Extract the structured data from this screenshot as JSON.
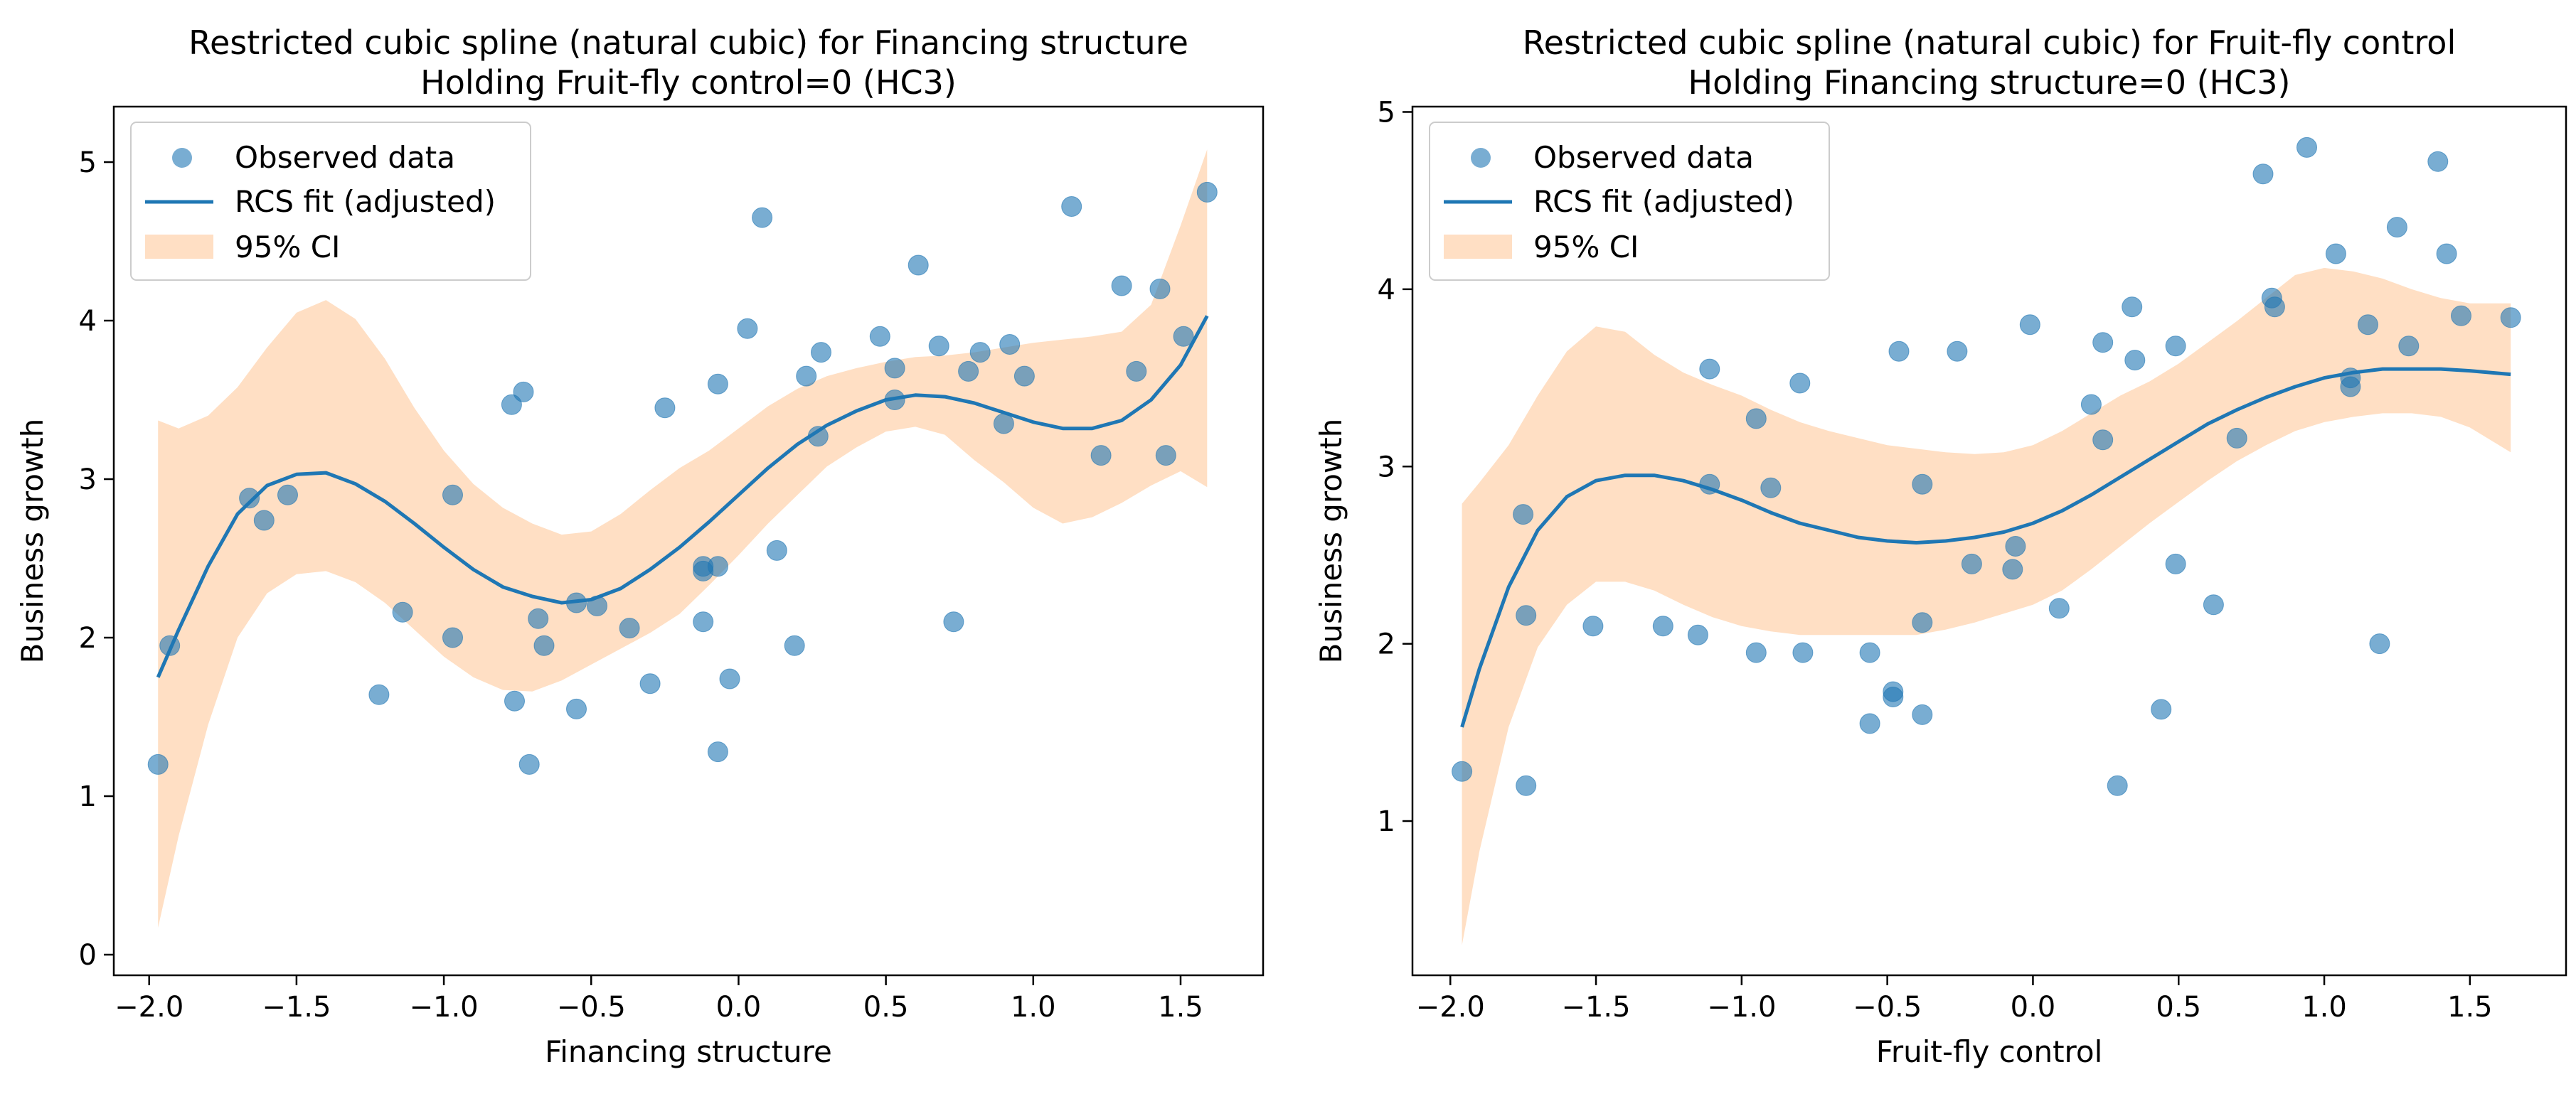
{
  "chart_data": [
    {
      "type": "scatter",
      "title": "Restricted cubic spline (natural cubic) for Financing structure",
      "subtitle": "Holding Fruit-fly control=0 (HC3)",
      "xlabel": "Financing structure",
      "ylabel": "Business growth",
      "xlim": [
        -2.12,
        1.78
      ],
      "ylim": [
        -0.13,
        5.35
      ],
      "xticks": [
        -2.0,
        -1.5,
        -1.0,
        -0.5,
        0.0,
        0.5,
        1.0,
        1.5
      ],
      "xtick_labels": [
        "−2.0",
        "−1.5",
        "−1.0",
        "−0.5",
        "0.0",
        "0.5",
        "1.0",
        "1.5"
      ],
      "yticks": [
        0,
        1,
        2,
        3,
        4,
        5
      ],
      "ytick_labels": [
        "0",
        "1",
        "2",
        "3",
        "4",
        "5"
      ],
      "legend": [
        "Observed data",
        "RCS fit (adjusted)",
        "95% CI"
      ],
      "legend_loc": "upper left",
      "colors": {
        "points": "#1f77b4",
        "line": "#1f77b4",
        "band": "#ffdfc4"
      },
      "points": [
        [
          -1.97,
          1.2
        ],
        [
          -1.93,
          1.95
        ],
        [
          -1.66,
          2.88
        ],
        [
          -1.61,
          2.74
        ],
        [
          -1.53,
          2.9
        ],
        [
          -1.22,
          1.64
        ],
        [
          -1.14,
          2.16
        ],
        [
          -0.97,
          2.9
        ],
        [
          -0.97,
          2.0
        ],
        [
          -0.77,
          3.47
        ],
        [
          -0.76,
          1.6
        ],
        [
          -0.73,
          3.55
        ],
        [
          -0.71,
          1.2
        ],
        [
          -0.68,
          2.12
        ],
        [
          -0.66,
          1.95
        ],
        [
          -0.55,
          2.22
        ],
        [
          -0.55,
          1.55
        ],
        [
          -0.48,
          2.2
        ],
        [
          -0.37,
          2.06
        ],
        [
          -0.3,
          1.71
        ],
        [
          -0.25,
          3.45
        ],
        [
          -0.12,
          2.45
        ],
        [
          -0.12,
          2.42
        ],
        [
          -0.12,
          2.1
        ],
        [
          -0.07,
          2.45
        ],
        [
          -0.07,
          3.6
        ],
        [
          -0.07,
          1.28
        ],
        [
          -0.03,
          1.74
        ],
        [
          0.03,
          3.95
        ],
        [
          0.08,
          4.65
        ],
        [
          0.13,
          2.55
        ],
        [
          0.19,
          1.95
        ],
        [
          0.23,
          3.65
        ],
        [
          0.27,
          3.27
        ],
        [
          0.28,
          3.8
        ],
        [
          0.48,
          3.9
        ],
        [
          0.53,
          3.7
        ],
        [
          0.53,
          3.5
        ],
        [
          0.61,
          4.35
        ],
        [
          0.68,
          3.84
        ],
        [
          0.73,
          2.1
        ],
        [
          0.78,
          3.68
        ],
        [
          0.82,
          3.8
        ],
        [
          0.9,
          3.35
        ],
        [
          0.92,
          3.85
        ],
        [
          0.97,
          3.65
        ],
        [
          1.13,
          4.72
        ],
        [
          1.23,
          3.15
        ],
        [
          1.3,
          4.22
        ],
        [
          1.35,
          3.68
        ],
        [
          1.43,
          4.2
        ],
        [
          1.45,
          3.15
        ],
        [
          1.51,
          3.9
        ],
        [
          1.59,
          4.81
        ]
      ],
      "fit": {
        "x": [
          -1.97,
          -1.9,
          -1.8,
          -1.7,
          -1.6,
          -1.5,
          -1.4,
          -1.3,
          -1.2,
          -1.1,
          -1.0,
          -0.9,
          -0.8,
          -0.7,
          -0.6,
          -0.5,
          -0.4,
          -0.3,
          -0.2,
          -0.1,
          0.0,
          0.1,
          0.2,
          0.3,
          0.4,
          0.5,
          0.6,
          0.7,
          0.8,
          0.9,
          1.0,
          1.1,
          1.2,
          1.3,
          1.4,
          1.5,
          1.59
        ],
        "y": [
          1.75,
          2.05,
          2.45,
          2.78,
          2.96,
          3.03,
          3.04,
          2.97,
          2.86,
          2.72,
          2.57,
          2.43,
          2.32,
          2.26,
          2.22,
          2.24,
          2.31,
          2.43,
          2.57,
          2.73,
          2.9,
          3.07,
          3.22,
          3.34,
          3.43,
          3.5,
          3.53,
          3.52,
          3.48,
          3.42,
          3.36,
          3.32,
          3.32,
          3.37,
          3.5,
          3.72,
          4.03
        ],
        "lower": [
          0.17,
          0.75,
          1.45,
          2.0,
          2.28,
          2.4,
          2.42,
          2.35,
          2.22,
          2.05,
          1.88,
          1.75,
          1.67,
          1.66,
          1.73,
          1.83,
          1.93,
          2.03,
          2.15,
          2.33,
          2.52,
          2.72,
          2.9,
          3.08,
          3.2,
          3.3,
          3.33,
          3.28,
          3.12,
          2.98,
          2.82,
          2.72,
          2.76,
          2.85,
          2.96,
          3.05,
          2.95
        ],
        "upper": [
          3.37,
          3.32,
          3.4,
          3.58,
          3.83,
          4.05,
          4.13,
          4.01,
          3.76,
          3.45,
          3.18,
          2.97,
          2.82,
          2.72,
          2.65,
          2.67,
          2.78,
          2.93,
          3.07,
          3.18,
          3.32,
          3.46,
          3.57,
          3.65,
          3.7,
          3.74,
          3.77,
          3.78,
          3.8,
          3.83,
          3.86,
          3.88,
          3.9,
          3.93,
          4.1,
          4.6,
          5.08
        ]
      }
    },
    {
      "type": "scatter",
      "title": "Restricted cubic spline (natural cubic) for Fruit-fly control",
      "subtitle": "Holding Financing structure=0 (HC3)",
      "xlabel": "Fruit-fly control",
      "ylabel": "Business growth",
      "xlim": [
        -2.13,
        1.83
      ],
      "ylim": [
        0.13,
        5.03
      ],
      "xticks": [
        -2.0,
        -1.5,
        -1.0,
        -0.5,
        0.0,
        0.5,
        1.0,
        1.5
      ],
      "xtick_labels": [
        "−2.0",
        "−1.5",
        "−1.0",
        "−0.5",
        "0.0",
        "0.5",
        "1.0",
        "1.5"
      ],
      "yticks": [
        1,
        2,
        3,
        4,
        5
      ],
      "ytick_labels": [
        "1",
        "2",
        "3",
        "4",
        "5"
      ],
      "legend": [
        "Observed data",
        "RCS fit (adjusted)",
        "95% CI"
      ],
      "legend_loc": "upper left",
      "colors": {
        "points": "#1f77b4",
        "line": "#1f77b4",
        "band": "#ffdfc4"
      },
      "points": [
        [
          -1.96,
          1.28
        ],
        [
          -1.75,
          2.73
        ],
        [
          -1.74,
          2.16
        ],
        [
          -1.74,
          1.2
        ],
        [
          -1.51,
          2.1
        ],
        [
          -1.27,
          2.1
        ],
        [
          -1.15,
          2.05
        ],
        [
          -1.11,
          3.55
        ],
        [
          -1.11,
          2.9
        ],
        [
          -0.95,
          3.27
        ],
        [
          -0.95,
          1.95
        ],
        [
          -0.9,
          2.88
        ],
        [
          -0.8,
          3.47
        ],
        [
          -0.79,
          1.95
        ],
        [
          -0.56,
          1.95
        ],
        [
          -0.56,
          1.55
        ],
        [
          -0.48,
          1.73
        ],
        [
          -0.48,
          1.7
        ],
        [
          -0.46,
          3.65
        ],
        [
          -0.38,
          2.9
        ],
        [
          -0.38,
          2.12
        ],
        [
          -0.38,
          1.6
        ],
        [
          -0.26,
          3.65
        ],
        [
          -0.21,
          2.45
        ],
        [
          -0.07,
          2.42
        ],
        [
          -0.06,
          2.55
        ],
        [
          -0.01,
          3.8
        ],
        [
          0.09,
          2.2
        ],
        [
          0.2,
          3.35
        ],
        [
          0.24,
          3.7
        ],
        [
          0.24,
          3.15
        ],
        [
          0.29,
          1.2
        ],
        [
          0.34,
          3.9
        ],
        [
          0.35,
          3.6
        ],
        [
          0.44,
          1.63
        ],
        [
          0.49,
          3.68
        ],
        [
          0.49,
          2.45
        ],
        [
          0.62,
          2.22
        ],
        [
          0.7,
          3.16
        ],
        [
          0.79,
          4.65
        ],
        [
          0.82,
          3.95
        ],
        [
          0.83,
          3.9
        ],
        [
          0.94,
          4.8
        ],
        [
          1.04,
          4.2
        ],
        [
          1.09,
          3.5
        ],
        [
          1.09,
          3.45
        ],
        [
          1.15,
          3.8
        ],
        [
          1.19,
          2.0
        ],
        [
          1.25,
          4.35
        ],
        [
          1.29,
          3.68
        ],
        [
          1.39,
          4.72
        ],
        [
          1.42,
          4.2
        ],
        [
          1.47,
          3.85
        ],
        [
          1.64,
          3.84
        ]
      ],
      "fit": {
        "x": [
          -1.96,
          -1.9,
          -1.8,
          -1.7,
          -1.6,
          -1.5,
          -1.4,
          -1.3,
          -1.2,
          -1.1,
          -1.0,
          -0.9,
          -0.8,
          -0.7,
          -0.6,
          -0.5,
          -0.4,
          -0.3,
          -0.2,
          -0.1,
          0.0,
          0.1,
          0.2,
          0.3,
          0.4,
          0.5,
          0.6,
          0.7,
          0.8,
          0.9,
          1.0,
          1.1,
          1.2,
          1.3,
          1.4,
          1.5,
          1.64
        ],
        "y": [
          1.53,
          1.86,
          2.32,
          2.64,
          2.83,
          2.92,
          2.95,
          2.95,
          2.92,
          2.87,
          2.81,
          2.74,
          2.68,
          2.64,
          2.6,
          2.58,
          2.57,
          2.58,
          2.6,
          2.63,
          2.68,
          2.75,
          2.84,
          2.94,
          3.04,
          3.14,
          3.24,
          3.32,
          3.39,
          3.45,
          3.5,
          3.53,
          3.55,
          3.55,
          3.55,
          3.54,
          3.52
        ],
        "lower": [
          0.3,
          0.83,
          1.53,
          1.98,
          2.22,
          2.35,
          2.35,
          2.3,
          2.22,
          2.15,
          2.1,
          2.07,
          2.05,
          2.05,
          2.05,
          2.05,
          2.05,
          2.08,
          2.12,
          2.17,
          2.22,
          2.3,
          2.42,
          2.55,
          2.68,
          2.8,
          2.92,
          3.03,
          3.12,
          3.2,
          3.25,
          3.28,
          3.3,
          3.3,
          3.28,
          3.22,
          3.08
        ],
        "upper": [
          2.79,
          2.91,
          3.12,
          3.4,
          3.65,
          3.79,
          3.76,
          3.63,
          3.53,
          3.46,
          3.4,
          3.32,
          3.25,
          3.2,
          3.16,
          3.12,
          3.1,
          3.08,
          3.07,
          3.08,
          3.12,
          3.2,
          3.3,
          3.4,
          3.48,
          3.58,
          3.7,
          3.82,
          3.95,
          4.08,
          4.12,
          4.1,
          4.06,
          4.0,
          3.95,
          3.92,
          3.92
        ]
      }
    }
  ]
}
